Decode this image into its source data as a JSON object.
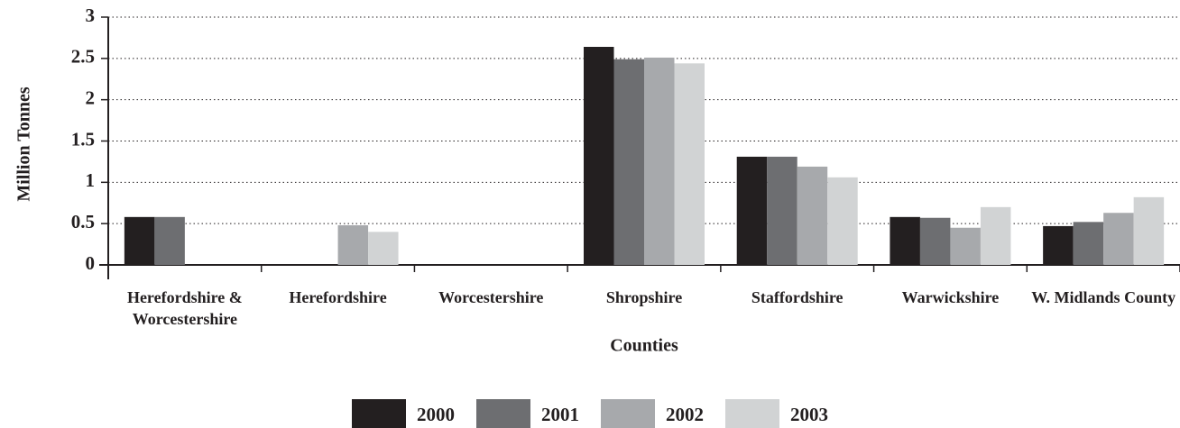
{
  "chart_data": {
    "type": "bar",
    "categories": [
      "Herefordshire & Worcestershire",
      "Herefordshire",
      "Worcestershire",
      "Shropshire",
      "Staffordshire",
      "Warwickshire",
      "W. Midlands County"
    ],
    "series": [
      {
        "name": "2000",
        "color": "#231f20",
        "values": [
          0.58,
          null,
          null,
          2.64,
          1.31,
          0.58,
          0.47
        ]
      },
      {
        "name": "2001",
        "color": "#6d6e71",
        "values": [
          0.58,
          null,
          null,
          2.49,
          1.31,
          0.57,
          0.52
        ]
      },
      {
        "name": "2002",
        "color": "#a7a9ac",
        "values": [
          null,
          0.48,
          null,
          2.51,
          1.19,
          0.45,
          0.63
        ]
      },
      {
        "name": "2003",
        "color": "#d1d3d4",
        "values": [
          null,
          0.4,
          null,
          2.44,
          1.06,
          0.7,
          0.82
        ]
      }
    ],
    "y_label": "Million Tonnes",
    "x_label": "Counties",
    "ylim": [
      0,
      3
    ],
    "yticks": [
      0,
      0.5,
      1,
      1.5,
      2,
      2.5,
      3
    ],
    "grid": true,
    "legend": "bottom"
  }
}
